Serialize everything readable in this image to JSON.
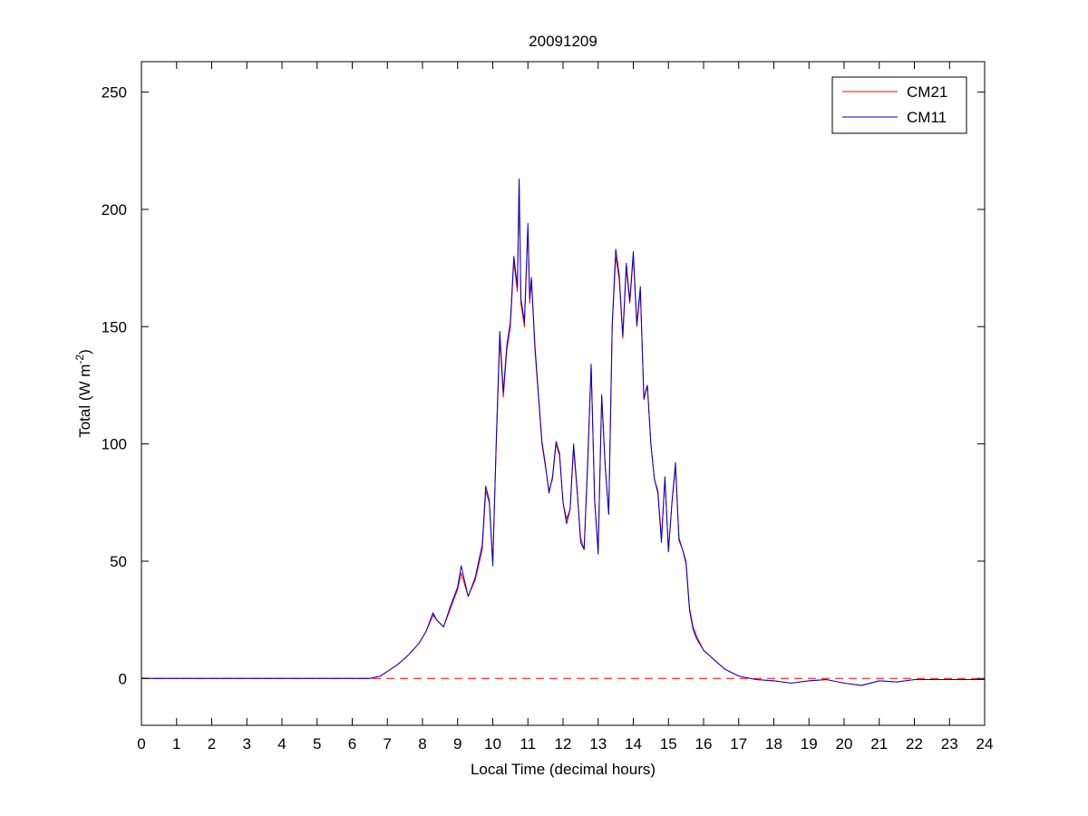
{
  "chart_data": {
    "type": "line",
    "title": "20091209",
    "xlabel": "Local Time (decimal hours)",
    "ylabel": {
      "main": "Total (W m",
      "sup": "-2",
      "close": ")"
    },
    "xlim": [
      0,
      24
    ],
    "ylim": [
      -20,
      263
    ],
    "xticks": [
      0,
      1,
      2,
      3,
      4,
      5,
      6,
      7,
      8,
      9,
      10,
      11,
      12,
      13,
      14,
      15,
      16,
      17,
      18,
      19,
      20,
      21,
      22,
      23,
      24
    ],
    "yticks": [
      0,
      50,
      100,
      150,
      200,
      250
    ],
    "grid": false,
    "legend_position": "top-right",
    "zero_reference": {
      "y": 0,
      "color": "#ff0000",
      "style": "dashed"
    },
    "series": [
      {
        "name": "CM21",
        "color": "#ff0000",
        "x": [
          0,
          6.5,
          6.8,
          7.0,
          7.3,
          7.6,
          7.9,
          8.1,
          8.3,
          8.4,
          8.6,
          8.8,
          9.0,
          9.1,
          9.3,
          9.5,
          9.7,
          9.8,
          9.9,
          10.0,
          10.1,
          10.2,
          10.3,
          10.4,
          10.5,
          10.6,
          10.7,
          10.75,
          10.8,
          10.9,
          11.0,
          11.05,
          11.1,
          11.2,
          11.3,
          11.4,
          11.5,
          11.6,
          11.7,
          11.8,
          11.9,
          12.0,
          12.1,
          12.2,
          12.3,
          12.4,
          12.5,
          12.6,
          12.7,
          12.8,
          12.9,
          13.0,
          13.1,
          13.2,
          13.3,
          13.4,
          13.5,
          13.6,
          13.7,
          13.8,
          13.9,
          14.0,
          14.1,
          14.2,
          14.3,
          14.4,
          14.5,
          14.6,
          14.7,
          14.8,
          14.9,
          15.0,
          15.1,
          15.2,
          15.3,
          15.4,
          15.5,
          15.6,
          15.7,
          15.8,
          16.0,
          16.3,
          16.6,
          17.0,
          17.5,
          18.0,
          18.5,
          19.0,
          19.5,
          20.0,
          20.5,
          21.0,
          21.5,
          22.0,
          23.0,
          24.0
        ],
        "y": [
          0,
          0,
          1,
          3,
          6,
          10,
          15,
          20,
          27,
          25,
          22,
          30,
          38,
          45,
          35,
          42,
          55,
          80,
          75,
          50,
          100,
          145,
          120,
          140,
          150,
          178,
          165,
          212,
          160,
          150,
          192,
          160,
          170,
          140,
          120,
          100,
          90,
          80,
          85,
          100,
          95,
          75,
          68,
          72,
          98,
          80,
          60,
          55,
          90,
          133,
          75,
          55,
          120,
          90,
          70,
          150,
          180,
          170,
          145,
          175,
          160,
          180,
          150,
          165,
          120,
          125,
          100,
          85,
          80,
          60,
          85,
          55,
          75,
          90,
          60,
          55,
          50,
          30,
          22,
          18,
          12,
          8,
          4,
          1,
          -0.5,
          -1,
          -2,
          -1,
          -0.5,
          -2,
          -3,
          -1,
          -1.5,
          -0.5,
          -0.5,
          -0.5
        ]
      },
      {
        "name": "CM11",
        "color": "#0000cc",
        "x": [
          0,
          6.5,
          6.8,
          7.0,
          7.3,
          7.6,
          7.9,
          8.1,
          8.3,
          8.4,
          8.6,
          8.8,
          9.0,
          9.1,
          9.3,
          9.5,
          9.7,
          9.8,
          9.9,
          10.0,
          10.1,
          10.2,
          10.3,
          10.4,
          10.5,
          10.6,
          10.7,
          10.75,
          10.8,
          10.9,
          11.0,
          11.05,
          11.1,
          11.2,
          11.3,
          11.4,
          11.5,
          11.6,
          11.7,
          11.8,
          11.9,
          12.0,
          12.1,
          12.2,
          12.3,
          12.4,
          12.5,
          12.6,
          12.7,
          12.8,
          12.9,
          13.0,
          13.1,
          13.2,
          13.3,
          13.4,
          13.5,
          13.6,
          13.7,
          13.8,
          13.9,
          14.0,
          14.1,
          14.2,
          14.3,
          14.4,
          14.5,
          14.6,
          14.7,
          14.8,
          14.9,
          15.0,
          15.1,
          15.2,
          15.3,
          15.4,
          15.5,
          15.6,
          15.7,
          15.8,
          16.0,
          16.3,
          16.6,
          17.0,
          17.5,
          18.0,
          18.5,
          19.0,
          19.5,
          20.0,
          20.5,
          21.0,
          21.5,
          22.0,
          23.0,
          24.0
        ],
        "y": [
          0,
          0,
          1,
          3,
          6,
          10,
          15,
          20,
          28,
          25,
          22,
          31,
          39,
          48,
          35,
          43,
          57,
          82,
          76,
          48,
          102,
          148,
          122,
          142,
          152,
          180,
          167,
          213,
          162,
          152,
          194,
          162,
          171,
          142,
          121,
          101,
          91,
          79,
          86,
          101,
          96,
          75,
          66,
          72,
          100,
          81,
          58,
          55,
          92,
          134,
          76,
          53,
          121,
          91,
          70,
          151,
          183,
          172,
          146,
          177,
          161,
          182,
          151,
          167,
          119,
          125,
          100,
          85,
          79,
          58,
          86,
          54,
          75,
          92,
          59,
          55,
          49,
          29,
          21,
          17,
          12,
          8,
          4,
          1,
          -0.5,
          -1,
          -2,
          -1,
          -0.5,
          -2,
          -3,
          -1,
          -1.5,
          -0.5,
          -0.5,
          -0.5
        ]
      }
    ]
  }
}
